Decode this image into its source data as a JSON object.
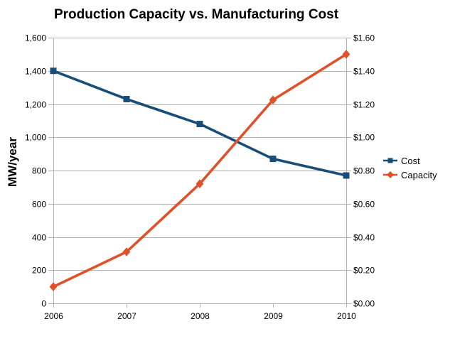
{
  "chart_data": {
    "type": "line",
    "title": "Production Capacity vs. Manufacturing Cost",
    "categories": [
      "2006",
      "2007",
      "2008",
      "2009",
      "2010"
    ],
    "series": [
      {
        "name": "Cost",
        "axis": "right",
        "marker": "square",
        "color": "#174d78",
        "values": [
          1.4,
          1.23,
          1.08,
          0.87,
          0.77
        ]
      },
      {
        "name": "Capacity",
        "axis": "left",
        "marker": "diamond",
        "color": "#e0512a",
        "values": [
          100,
          310,
          720,
          1225,
          1500
        ]
      }
    ],
    "y_left": {
      "label": "MW/year",
      "min": 0,
      "max": 1600,
      "step": 200,
      "tick_labels": [
        "0",
        "200",
        "400",
        "600",
        "800",
        "1,000",
        "1,200",
        "1,400",
        "1,600"
      ]
    },
    "y_right": {
      "label": "",
      "min": 0,
      "max": 1.6,
      "step": 0.2,
      "tick_labels": [
        "$0.00",
        "$0.20",
        "$0.40",
        "$0.60",
        "$0.80",
        "$1.00",
        "$1.20",
        "$1.40",
        "$1.60"
      ]
    },
    "grid": "horizontal",
    "legend_position": "right",
    "colors": {
      "grid": "#b3b3b3",
      "axis": "#b3b3b3",
      "text": "#000000",
      "background": "#ffffff"
    }
  }
}
